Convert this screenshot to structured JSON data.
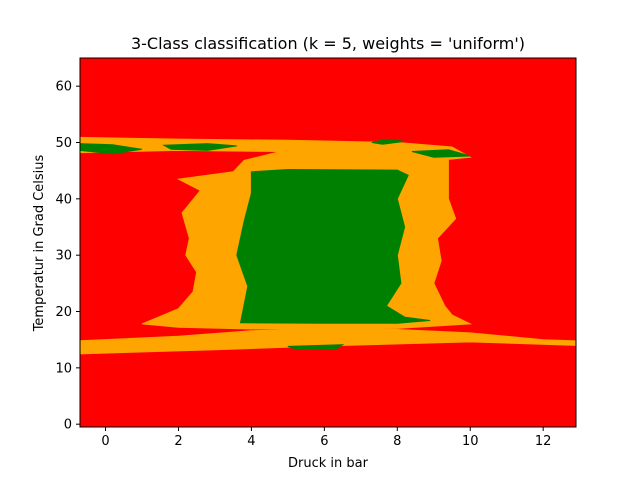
{
  "chart_data": {
    "type": "heatmap",
    "title": "3-Class classification (k = 5, weights = 'uniform')",
    "xlabel": "Druck in bar",
    "ylabel": "Temperatur in Grad Celsius",
    "xlim": [
      -0.7,
      12.9
    ],
    "ylim": [
      -0.5,
      65
    ],
    "xticks": [
      0,
      2,
      4,
      6,
      8,
      10,
      12
    ],
    "yticks": [
      0,
      10,
      20,
      30,
      40,
      50,
      60
    ],
    "grid": false,
    "classes": [
      {
        "label": "0",
        "color": "#ff0000"
      },
      {
        "label": "1",
        "color": "#ffa500"
      },
      {
        "label": "2",
        "color": "#008000"
      }
    ],
    "background_class": "0",
    "decision_regions": [
      {
        "class": "1",
        "polygon": [
          [
            -0.7,
            14.8
          ],
          [
            2,
            15.6
          ],
          [
            4,
            16.6
          ],
          [
            6,
            16.9
          ],
          [
            8,
            16.8
          ],
          [
            10,
            16.2
          ],
          [
            12,
            15.0
          ],
          [
            12.9,
            14.8
          ],
          [
            12.9,
            14.0
          ],
          [
            10,
            14.6
          ],
          [
            6,
            13.9
          ],
          [
            3,
            13.2
          ],
          [
            -0.7,
            12.5
          ]
        ]
      },
      {
        "class": "1",
        "polygon": [
          [
            1.0,
            17.8
          ],
          [
            2.0,
            20.5
          ],
          [
            2.4,
            23.5
          ],
          [
            2.5,
            27
          ],
          [
            2.2,
            30
          ],
          [
            2.3,
            33
          ],
          [
            2.1,
            37.5
          ],
          [
            2.6,
            41.5
          ],
          [
            2.0,
            43.5
          ],
          [
            3.5,
            44.8
          ],
          [
            3.8,
            46.8
          ],
          [
            4.8,
            48.4
          ],
          [
            2.0,
            48.6
          ],
          [
            -0.7,
            48.2
          ],
          [
            -0.7,
            50.9
          ],
          [
            2.0,
            50.6
          ],
          [
            5.0,
            50.4
          ],
          [
            8.0,
            50.0
          ],
          [
            9.5,
            49.2
          ],
          [
            10.0,
            47.4
          ],
          [
            9.4,
            47.0
          ],
          [
            9.4,
            44.0
          ],
          [
            9.4,
            40.0
          ],
          [
            9.6,
            36.5
          ],
          [
            9.1,
            33.0
          ],
          [
            9.2,
            29.0
          ],
          [
            9.0,
            25.0
          ],
          [
            9.3,
            21.0
          ],
          [
            9.5,
            19.4
          ],
          [
            10.0,
            17.8
          ],
          [
            8.0,
            17.0
          ],
          [
            6.0,
            16.9
          ],
          [
            4.0,
            16.9
          ],
          [
            2.0,
            17.2
          ]
        ]
      },
      {
        "class": "2",
        "polygon": [
          [
            3.7,
            18.0
          ],
          [
            3.9,
            24.5
          ],
          [
            3.6,
            30
          ],
          [
            3.8,
            36
          ],
          [
            4.0,
            41
          ],
          [
            4.0,
            44.8
          ],
          [
            5.0,
            45.2
          ],
          [
            8.0,
            45.1
          ],
          [
            8.3,
            44.2
          ],
          [
            8.0,
            40.0
          ],
          [
            8.2,
            35.0
          ],
          [
            8.0,
            30.0
          ],
          [
            8.1,
            25.0
          ],
          [
            7.7,
            21.0
          ],
          [
            8.2,
            19.0
          ],
          [
            8.9,
            18.4
          ],
          [
            8.0,
            17.9
          ],
          [
            6.0,
            17.9
          ]
        ]
      },
      {
        "class": "2",
        "polygon": [
          [
            -0.7,
            49.8
          ],
          [
            0.2,
            49.6
          ],
          [
            1.0,
            48.8
          ],
          [
            0.2,
            48.0
          ],
          [
            -0.7,
            48.6
          ]
        ]
      },
      {
        "class": "2",
        "polygon": [
          [
            1.6,
            49.5
          ],
          [
            2.8,
            49.8
          ],
          [
            3.6,
            49.4
          ],
          [
            2.8,
            48.6
          ],
          [
            1.8,
            48.8
          ]
        ]
      },
      {
        "class": "2",
        "polygon": [
          [
            8.4,
            48.4
          ],
          [
            9.4,
            48.7
          ],
          [
            10.0,
            47.6
          ],
          [
            9.0,
            47.4
          ]
        ]
      },
      {
        "class": "2",
        "polygon": [
          [
            7.3,
            50.0
          ],
          [
            7.7,
            50.6
          ],
          [
            8.2,
            50.2
          ],
          [
            7.6,
            49.7
          ]
        ]
      },
      {
        "class": "2",
        "polygon": [
          [
            5.0,
            13.8
          ],
          [
            6.5,
            14.1
          ],
          [
            6.3,
            13.3
          ],
          [
            5.2,
            13.4
          ]
        ]
      }
    ]
  }
}
